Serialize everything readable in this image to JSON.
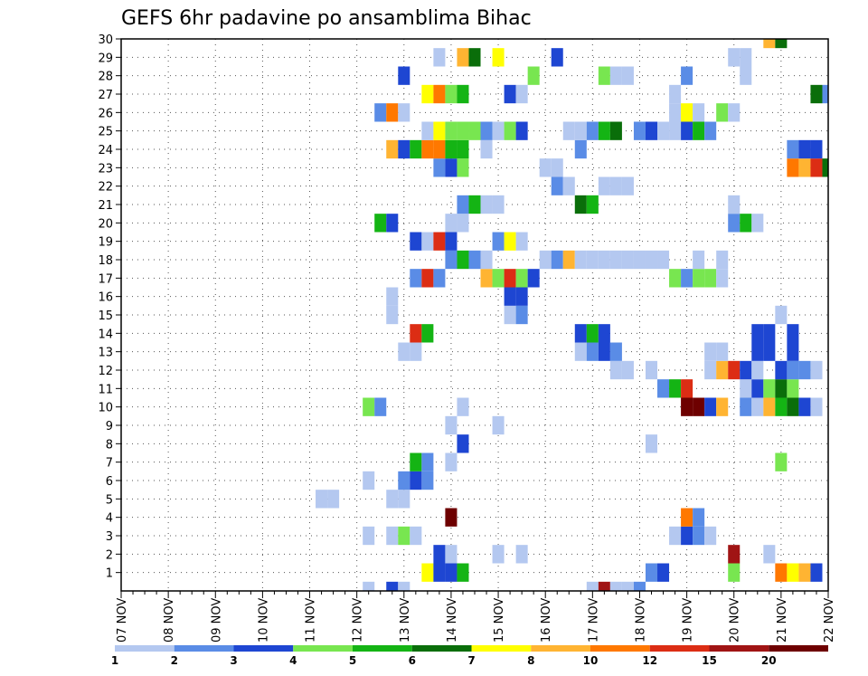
{
  "chart_data": {
    "type": "heatmap",
    "title": "GEFS 6hr padavine po ansamblima Bihac",
    "xlabel": "",
    "ylabel": "",
    "x_axis": {
      "unit": "6-hour step",
      "range": [
        0,
        60
      ],
      "tick_labels": [
        "07 NOV",
        "08 NOV",
        "09 NOV",
        "10 NOV",
        "11 NOV",
        "12 NOV",
        "13 NOV",
        "14 NOV",
        "15 NOV",
        "16 NOV",
        "17 NOV",
        "18 NOV",
        "19 NOV",
        "20 NOV",
        "21 NOV",
        "22 NOV"
      ]
    },
    "y_axis": {
      "label": "",
      "range": [
        0,
        30
      ],
      "tick_labels": [
        "1",
        "2",
        "3",
        "4",
        "5",
        "6",
        "7",
        "8",
        "9",
        "10",
        "11",
        "12",
        "13",
        "14",
        "15",
        "16",
        "17",
        "18",
        "19",
        "20",
        "21",
        "22",
        "23",
        "24",
        "25",
        "26",
        "27",
        "28",
        "29",
        "30"
      ]
    },
    "grid": "dotted",
    "colorbar": {
      "position": "bottom",
      "labels": [
        "1",
        "2",
        "3",
        "4",
        "5",
        "6",
        "7",
        "8",
        "10",
        "12",
        "15",
        "20"
      ],
      "colors": [
        "#b4c8f0",
        "#5a8ce6",
        "#1e46d2",
        "#78e650",
        "#14b414",
        "#0a6e0a",
        "#ffff00",
        "#ffb432",
        "#ff7800",
        "#dc2d14",
        "#a01414",
        "#6e0000"
      ]
    },
    "series": [
      {
        "y": 0,
        "cells": [
          [
            21,
            0
          ],
          [
            23,
            2
          ],
          [
            24,
            0
          ],
          [
            40,
            0
          ],
          [
            41,
            10
          ],
          [
            42,
            0
          ],
          [
            43,
            0
          ],
          [
            44,
            1
          ]
        ]
      },
      {
        "y": 1,
        "cells": [
          [
            26,
            6
          ],
          [
            27,
            2
          ],
          [
            28,
            2
          ],
          [
            29,
            4
          ],
          [
            45,
            1
          ],
          [
            46,
            2
          ],
          [
            52,
            3
          ],
          [
            56,
            8
          ],
          [
            57,
            6
          ],
          [
            58,
            7
          ],
          [
            59,
            2
          ]
        ]
      },
      {
        "y": 2,
        "cells": [
          [
            27,
            2
          ],
          [
            28,
            0
          ],
          [
            32,
            0
          ],
          [
            34,
            0
          ],
          [
            52,
            10
          ],
          [
            55,
            0
          ]
        ]
      },
      {
        "y": 3,
        "cells": [
          [
            21,
            0
          ],
          [
            23,
            0
          ],
          [
            24,
            3
          ],
          [
            25,
            0
          ],
          [
            47,
            0
          ],
          [
            48,
            2
          ],
          [
            49,
            1
          ],
          [
            50,
            0
          ]
        ]
      },
      {
        "y": 4,
        "cells": [
          [
            28,
            11
          ],
          [
            48,
            8
          ],
          [
            49,
            1
          ]
        ]
      },
      {
        "y": 5,
        "cells": [
          [
            17,
            0
          ],
          [
            18,
            0
          ],
          [
            23,
            0
          ],
          [
            24,
            0
          ]
        ]
      },
      {
        "y": 6,
        "cells": [
          [
            21,
            0
          ],
          [
            24,
            1
          ],
          [
            25,
            2
          ],
          [
            26,
            1
          ]
        ]
      },
      {
        "y": 7,
        "cells": [
          [
            25,
            4
          ],
          [
            26,
            1
          ],
          [
            28,
            0
          ],
          [
            56,
            3
          ]
        ]
      },
      {
        "y": 8,
        "cells": [
          [
            29,
            2
          ],
          [
            45,
            0
          ]
        ]
      },
      {
        "y": 9,
        "cells": [
          [
            28,
            0
          ],
          [
            32,
            0
          ]
        ]
      },
      {
        "y": 10,
        "cells": [
          [
            21,
            3
          ],
          [
            22,
            1
          ],
          [
            29,
            0
          ],
          [
            48,
            11
          ],
          [
            49,
            11
          ],
          [
            50,
            2
          ],
          [
            51,
            7
          ],
          [
            53,
            1
          ],
          [
            54,
            0
          ],
          [
            55,
            7
          ],
          [
            56,
            4
          ],
          [
            57,
            5
          ],
          [
            58,
            2
          ],
          [
            59,
            0
          ]
        ]
      },
      {
        "y": 11,
        "cells": [
          [
            46,
            1
          ],
          [
            47,
            4
          ],
          [
            48,
            9
          ],
          [
            53,
            0
          ],
          [
            54,
            2
          ],
          [
            55,
            3
          ],
          [
            56,
            5
          ],
          [
            57,
            3
          ]
        ]
      },
      {
        "y": 12,
        "cells": [
          [
            42,
            0
          ],
          [
            43,
            0
          ],
          [
            45,
            0
          ],
          [
            50,
            0
          ],
          [
            51,
            7
          ],
          [
            52,
            9
          ],
          [
            53,
            2
          ],
          [
            54,
            0
          ],
          [
            56,
            2
          ],
          [
            57,
            1
          ],
          [
            58,
            1
          ],
          [
            59,
            0
          ]
        ]
      },
      {
        "y": 13,
        "cells": [
          [
            24,
            0
          ],
          [
            25,
            0
          ],
          [
            39,
            0
          ],
          [
            40,
            1
          ],
          [
            41,
            2
          ],
          [
            42,
            1
          ],
          [
            50,
            0
          ],
          [
            51,
            0
          ],
          [
            54,
            2
          ],
          [
            55,
            2
          ],
          [
            57,
            2
          ]
        ]
      },
      {
        "y": 14,
        "cells": [
          [
            25,
            9
          ],
          [
            26,
            4
          ],
          [
            39,
            2
          ],
          [
            40,
            4
          ],
          [
            41,
            2
          ],
          [
            54,
            2
          ],
          [
            55,
            2
          ],
          [
            57,
            2
          ]
        ]
      },
      {
        "y": 15,
        "cells": [
          [
            23,
            0
          ],
          [
            33,
            0
          ],
          [
            34,
            1
          ],
          [
            56,
            0
          ]
        ]
      },
      {
        "y": 16,
        "cells": [
          [
            23,
            0
          ],
          [
            33,
            2
          ],
          [
            34,
            2
          ]
        ]
      },
      {
        "y": 17,
        "cells": [
          [
            25,
            1
          ],
          [
            26,
            9
          ],
          [
            27,
            1
          ],
          [
            31,
            7
          ],
          [
            32,
            3
          ],
          [
            33,
            9
          ],
          [
            34,
            3
          ],
          [
            35,
            2
          ],
          [
            47,
            3
          ],
          [
            48,
            1
          ],
          [
            49,
            3
          ],
          [
            50,
            3
          ],
          [
            51,
            0
          ]
        ]
      },
      {
        "y": 18,
        "cells": [
          [
            28,
            1
          ],
          [
            29,
            4
          ],
          [
            30,
            1
          ],
          [
            31,
            0
          ],
          [
            36,
            0
          ],
          [
            37,
            1
          ],
          [
            38,
            7
          ],
          [
            39,
            0
          ],
          [
            40,
            0
          ],
          [
            41,
            0
          ],
          [
            42,
            0
          ],
          [
            43,
            0
          ],
          [
            44,
            0
          ],
          [
            45,
            0
          ],
          [
            46,
            0
          ],
          [
            49,
            0
          ],
          [
            51,
            0
          ]
        ]
      },
      {
        "y": 19,
        "cells": [
          [
            25,
            2
          ],
          [
            26,
            0
          ],
          [
            27,
            9
          ],
          [
            28,
            2
          ],
          [
            32,
            1
          ],
          [
            33,
            6
          ],
          [
            34,
            0
          ]
        ]
      },
      {
        "y": 20,
        "cells": [
          [
            22,
            4
          ],
          [
            23,
            2
          ],
          [
            28,
            0
          ],
          [
            29,
            0
          ],
          [
            52,
            1
          ],
          [
            53,
            4
          ],
          [
            54,
            0
          ]
        ]
      },
      {
        "y": 21,
        "cells": [
          [
            29,
            1
          ],
          [
            30,
            4
          ],
          [
            31,
            0
          ],
          [
            32,
            0
          ],
          [
            39,
            5
          ],
          [
            40,
            4
          ],
          [
            52,
            0
          ]
        ]
      },
      {
        "y": 22,
        "cells": [
          [
            37,
            1
          ],
          [
            38,
            0
          ],
          [
            41,
            0
          ],
          [
            42,
            0
          ],
          [
            43,
            0
          ]
        ]
      },
      {
        "y": 23,
        "cells": [
          [
            27,
            1
          ],
          [
            28,
            2
          ],
          [
            29,
            3
          ],
          [
            36,
            0
          ],
          [
            37,
            0
          ],
          [
            57,
            8
          ],
          [
            58,
            7
          ],
          [
            59,
            9
          ],
          [
            60,
            5
          ]
        ]
      },
      {
        "y": 24,
        "cells": [
          [
            23,
            7
          ],
          [
            24,
            2
          ],
          [
            25,
            4
          ],
          [
            26,
            8
          ],
          [
            27,
            8
          ],
          [
            28,
            4
          ],
          [
            29,
            4
          ],
          [
            31,
            0
          ],
          [
            39,
            1
          ],
          [
            57,
            1
          ],
          [
            58,
            2
          ],
          [
            59,
            2
          ]
        ]
      },
      {
        "y": 25,
        "cells": [
          [
            26,
            0
          ],
          [
            27,
            6
          ],
          [
            28,
            3
          ],
          [
            29,
            3
          ],
          [
            30,
            3
          ],
          [
            31,
            1
          ],
          [
            32,
            0
          ],
          [
            33,
            3
          ],
          [
            34,
            2
          ],
          [
            38,
            0
          ],
          [
            39,
            0
          ],
          [
            40,
            1
          ],
          [
            41,
            4
          ],
          [
            42,
            5
          ],
          [
            44,
            1
          ],
          [
            45,
            2
          ],
          [
            46,
            0
          ],
          [
            47,
            0
          ],
          [
            48,
            2
          ],
          [
            49,
            4
          ],
          [
            50,
            1
          ]
        ]
      },
      {
        "y": 26,
        "cells": [
          [
            22,
            1
          ],
          [
            23,
            8
          ],
          [
            24,
            0
          ],
          [
            47,
            0
          ],
          [
            48,
            6
          ],
          [
            49,
            0
          ],
          [
            51,
            3
          ],
          [
            52,
            0
          ]
        ]
      },
      {
        "y": 27,
        "cells": [
          [
            26,
            6
          ],
          [
            27,
            8
          ],
          [
            28,
            3
          ],
          [
            29,
            4
          ],
          [
            33,
            2
          ],
          [
            34,
            0
          ],
          [
            47,
            0
          ],
          [
            59,
            5
          ],
          [
            60,
            1
          ]
        ]
      },
      {
        "y": 28,
        "cells": [
          [
            24,
            2
          ],
          [
            35,
            3
          ],
          [
            41,
            3
          ],
          [
            42,
            0
          ],
          [
            43,
            0
          ],
          [
            48,
            1
          ],
          [
            53,
            0
          ]
        ]
      },
      {
        "y": 29,
        "cells": [
          [
            27,
            0
          ],
          [
            29,
            7
          ],
          [
            30,
            5
          ],
          [
            32,
            6
          ],
          [
            37,
            2
          ],
          [
            52,
            0
          ],
          [
            53,
            0
          ]
        ]
      },
      {
        "y": 30,
        "cells": [
          [
            55,
            7
          ],
          [
            56,
            5
          ]
        ]
      }
    ]
  }
}
